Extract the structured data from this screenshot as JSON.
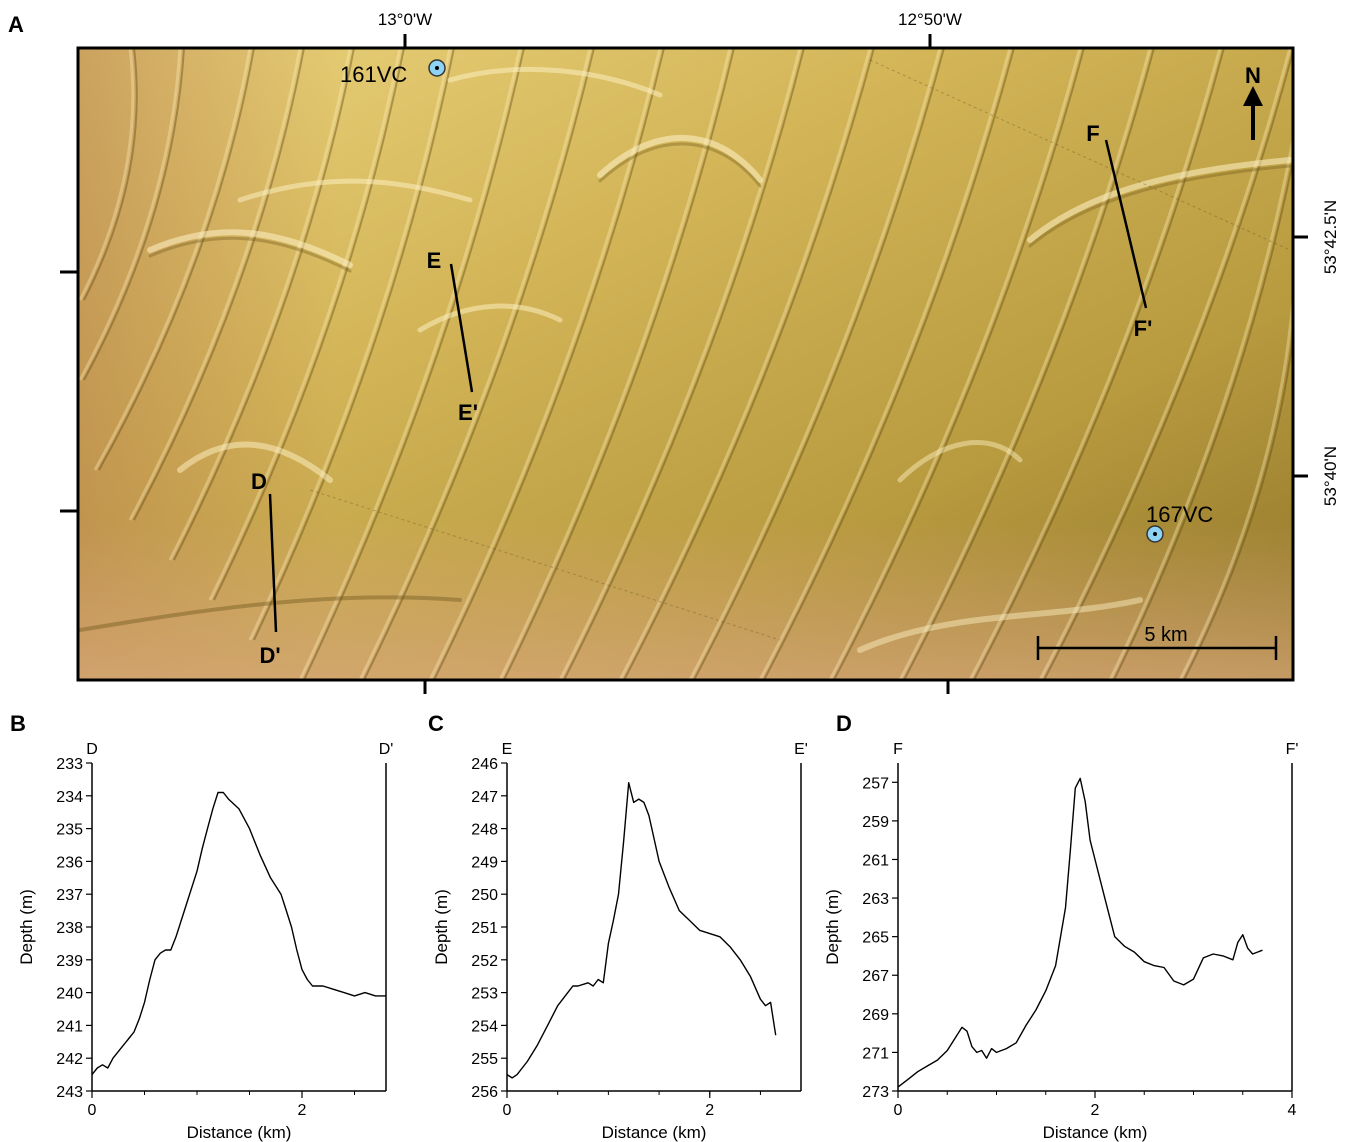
{
  "map": {
    "panel_label": "A",
    "lon_labels": [
      "13°0'W",
      "12°50'W"
    ],
    "lat_labels": [
      "53°42.5'N",
      "53°40'N"
    ],
    "north_label": "N",
    "scale_label": "5 km",
    "cores": [
      {
        "name": "161VC"
      },
      {
        "name": "167VC"
      }
    ],
    "profiles": [
      {
        "start": "D",
        "end": "D'"
      },
      {
        "start": "E",
        "end": "E'"
      },
      {
        "start": "F",
        "end": "F'"
      }
    ],
    "colors": {
      "map_light": "#e6cf7a",
      "map_mid": "#c2a346",
      "map_dark": "#8f7327",
      "map_south": "#d8a87a",
      "core_marker": "#8fd3f4"
    }
  },
  "chart_data": [
    {
      "type": "line",
      "panel_label": "B",
      "start_label": "D",
      "end_label": "D'",
      "xlabel": "Distance (km)",
      "ylabel": "Depth (m)",
      "xlim": [
        0,
        2.8
      ],
      "ylim": [
        243,
        233
      ],
      "xticks": [
        0,
        2
      ],
      "yticks": [
        233,
        234,
        235,
        236,
        237,
        238,
        239,
        240,
        241,
        242,
        243
      ],
      "x": [
        0,
        0.05,
        0.1,
        0.15,
        0.2,
        0.25,
        0.3,
        0.35,
        0.4,
        0.45,
        0.5,
        0.55,
        0.6,
        0.65,
        0.7,
        0.75,
        0.8,
        0.9,
        1.0,
        1.05,
        1.1,
        1.15,
        1.2,
        1.25,
        1.3,
        1.4,
        1.5,
        1.6,
        1.7,
        1.8,
        1.85,
        1.9,
        1.95,
        2.0,
        2.05,
        2.1,
        2.2,
        2.3,
        2.4,
        2.5,
        2.6,
        2.7,
        2.8
      ],
      "y": [
        242.5,
        242.3,
        242.2,
        242.3,
        242.0,
        241.8,
        241.6,
        241.4,
        241.2,
        240.8,
        240.3,
        239.6,
        239.0,
        238.8,
        238.7,
        238.7,
        238.3,
        237.3,
        236.3,
        235.6,
        235.0,
        234.4,
        233.9,
        233.9,
        234.1,
        234.4,
        235.0,
        235.8,
        236.5,
        237.0,
        237.5,
        238.0,
        238.7,
        239.3,
        239.6,
        239.8,
        239.8,
        239.9,
        240.0,
        240.1,
        240.0,
        240.1,
        240.1
      ]
    },
    {
      "type": "line",
      "panel_label": "C",
      "start_label": "E",
      "end_label": "E'",
      "xlabel": "Distance (km)",
      "ylabel": "Depth (m)",
      "xlim": [
        0,
        2.9
      ],
      "ylim": [
        256,
        246
      ],
      "xticks": [
        0,
        2
      ],
      "yticks": [
        246,
        247,
        248,
        249,
        250,
        251,
        252,
        253,
        254,
        255,
        256
      ],
      "x": [
        0,
        0.05,
        0.1,
        0.15,
        0.2,
        0.3,
        0.4,
        0.5,
        0.6,
        0.65,
        0.7,
        0.8,
        0.85,
        0.9,
        0.95,
        1.0,
        1.05,
        1.1,
        1.15,
        1.2,
        1.25,
        1.3,
        1.35,
        1.4,
        1.45,
        1.5,
        1.6,
        1.7,
        1.8,
        1.9,
        2.0,
        2.1,
        2.2,
        2.3,
        2.4,
        2.5,
        2.55,
        2.6,
        2.65
      ],
      "y": [
        255.5,
        255.6,
        255.5,
        255.3,
        255.1,
        254.6,
        254.0,
        253.4,
        253.0,
        252.8,
        252.8,
        252.7,
        252.8,
        252.6,
        252.7,
        251.5,
        250.8,
        250.0,
        248.4,
        246.6,
        247.2,
        247.1,
        247.2,
        247.6,
        248.3,
        249.0,
        249.8,
        250.5,
        250.8,
        251.1,
        251.2,
        251.3,
        251.6,
        252.0,
        252.5,
        253.2,
        253.4,
        253.3,
        254.3
      ]
    },
    {
      "type": "line",
      "panel_label": "D",
      "start_label": "F",
      "end_label": "F'",
      "xlabel": "Distance (km)",
      "ylabel": "Depth (m)",
      "xlim": [
        0,
        4
      ],
      "ylim": [
        273,
        256
      ],
      "xticks": [
        0,
        2,
        4
      ],
      "yticks": [
        257,
        259,
        261,
        263,
        265,
        267,
        269,
        271,
        273
      ],
      "x": [
        0,
        0.1,
        0.2,
        0.3,
        0.4,
        0.5,
        0.6,
        0.65,
        0.7,
        0.75,
        0.8,
        0.85,
        0.9,
        0.95,
        1.0,
        1.1,
        1.2,
        1.3,
        1.4,
        1.5,
        1.6,
        1.7,
        1.75,
        1.8,
        1.85,
        1.9,
        1.95,
        2.0,
        2.1,
        2.2,
        2.3,
        2.4,
        2.5,
        2.6,
        2.7,
        2.8,
        2.9,
        3.0,
        3.1,
        3.2,
        3.3,
        3.4,
        3.45,
        3.5,
        3.55,
        3.6,
        3.65,
        3.7
      ],
      "y": [
        272.8,
        272.4,
        272.0,
        271.7,
        271.4,
        270.9,
        270.1,
        269.7,
        269.9,
        270.7,
        271.0,
        270.9,
        271.3,
        270.8,
        271.0,
        270.8,
        270.5,
        269.6,
        268.8,
        267.8,
        266.5,
        263.5,
        260.5,
        257.3,
        256.8,
        258.0,
        260.0,
        261.0,
        263.0,
        265.0,
        265.5,
        265.8,
        266.3,
        266.5,
        266.6,
        267.3,
        267.5,
        267.2,
        266.1,
        265.9,
        266.0,
        266.2,
        265.3,
        264.9,
        265.6,
        265.9,
        265.8,
        265.7
      ]
    }
  ]
}
